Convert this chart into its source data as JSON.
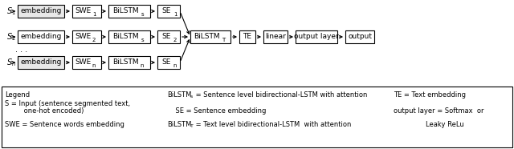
{
  "fig_width": 6.4,
  "fig_height": 1.86,
  "dpi": 100,
  "bg_color": "#ffffff",
  "row_subs": [
    "1",
    "2",
    "n"
  ],
  "bilstm_row_subs": [
    "s",
    "s",
    "n"
  ],
  "shared_chain": [
    "BiLSTM_T",
    "TE",
    "linear",
    "output layer",
    "output"
  ],
  "legend": {
    "title": "Legend",
    "c1l1": "S = Input (sentence segmented text,",
    "c1l2": "         one-hot encoded)",
    "c1l3": "SWE = Sentence words embedding",
    "c2l1_pre": "BiLSTM",
    "c2l1_sub": "s",
    "c2l1_post": " = Sentence level bidirectional-LSTM with attention",
    "c2l2": "    SE = Sentence embedding",
    "c2l3_pre": "BiLSTM",
    "c2l3_sub": "T",
    "c2l3_post": " = Text level bidirectional-LSTM  with attention",
    "c3l1": "TE = Text embedding",
    "c3l2": "output layer = Softmax  or",
    "c3l3": "Leaky ReLu"
  }
}
